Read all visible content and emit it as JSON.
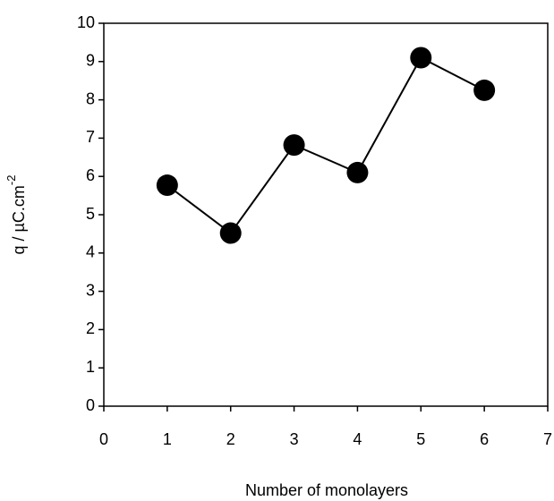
{
  "chart_data": {
    "type": "line",
    "xlabel": "Number of monolayers",
    "ylabel": "q / µC.cm",
    "ylabel_superscript": "-2",
    "x": [
      1,
      2,
      3,
      4,
      5,
      6
    ],
    "series": [
      {
        "color": "#000000",
        "values": [
          5.77,
          4.52,
          6.82,
          6.1,
          9.1,
          8.25
        ]
      }
    ],
    "xlim": [
      0,
      7
    ],
    "xticks": [
      0,
      1,
      2,
      3,
      4,
      5,
      6,
      7
    ],
    "ylim": [
      0,
      10
    ],
    "yticks": [
      0,
      1,
      2,
      3,
      4,
      5,
      6,
      7,
      8,
      9,
      10
    ],
    "grid": false
  }
}
